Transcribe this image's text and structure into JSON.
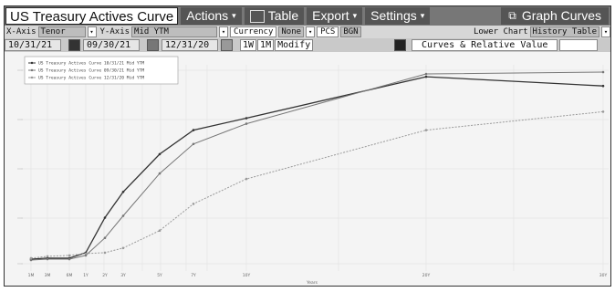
{
  "titlebar": {
    "title": "US Treasury Actives Curve",
    "actions_label": "Actions",
    "table_label": "Table",
    "export_label": "Export",
    "settings_label": "Settings",
    "graph_curves_label": "Graph Curves"
  },
  "axis_row": {
    "xaxis_label": "X-Axis",
    "xaxis_value": "Tenor",
    "yaxis_label": "Y-Axis",
    "yaxis_value": "Mid YTM",
    "currency_label": "Currency",
    "currency_value": "None",
    "pcs_label": "PCS",
    "pcs_value": "BGN",
    "lower_chart_label": "Lower Chart",
    "lower_chart_value": "History Table"
  },
  "date_row": {
    "date1": "10/31/21",
    "date2": "09/30/21",
    "date3": "12/31/20",
    "btn_1w": "1W",
    "btn_1m": "1M",
    "btn_modify": "Modify",
    "tab_curves": "Curves & Relative Value"
  },
  "colors": {
    "titlebar_bg": "#777777",
    "series_dark": "#333333",
    "series_mid": "#777777",
    "series_light": "#999999"
  },
  "chart_data": {
    "type": "line",
    "xlabel": "Years",
    "ylabel": "",
    "legend_placement": "top-left",
    "grid": true,
    "x_tick_labels": [
      "1M",
      "3M",
      "6M",
      "1Y",
      "2Y",
      "3Y",
      "5Y",
      "7Y",
      "10Y",
      "20Y",
      "30Y"
    ],
    "series": [
      {
        "name": "US Treasury Actives Curve 10/31/21 Mid YTM",
        "values": [
          0.05,
          0.06,
          0.06,
          0.12,
          0.5,
          0.78,
          1.19,
          1.45,
          1.58,
          2.03,
          1.93
        ]
      },
      {
        "name": "US Treasury Actives Curve 09/30/21 Mid YTM",
        "values": [
          0.04,
          0.05,
          0.05,
          0.09,
          0.28,
          0.52,
          0.98,
          1.3,
          1.52,
          2.06,
          2.08
        ]
      },
      {
        "name": "US Treasury Actives Curve 12/31/20 Mid YTM",
        "values": [
          0.06,
          0.08,
          0.09,
          0.11,
          0.12,
          0.17,
          0.36,
          0.65,
          0.92,
          1.45,
          1.65
        ]
      }
    ]
  }
}
